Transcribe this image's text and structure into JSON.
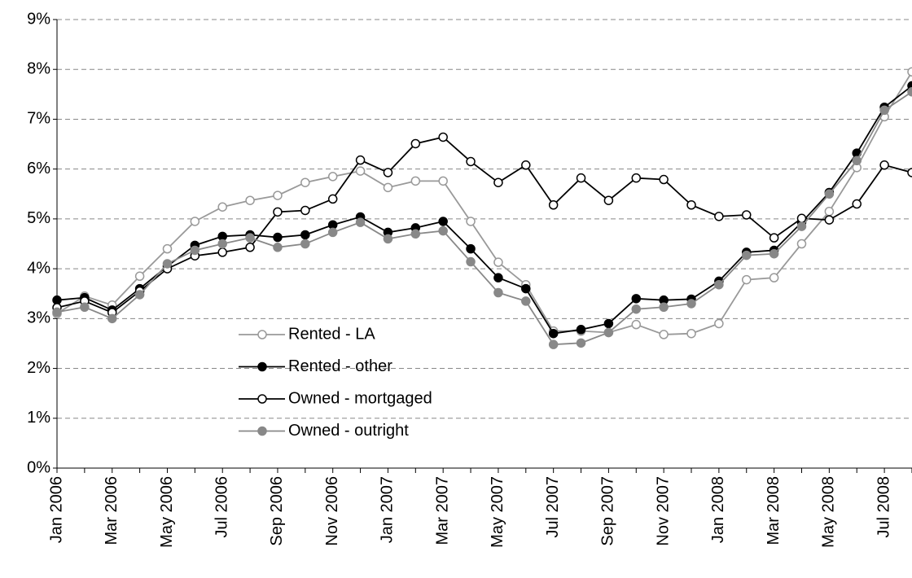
{
  "chart_data": {
    "type": "line",
    "categories": [
      "Jan 2006",
      null,
      "Mar 2006",
      null,
      "May 2006",
      null,
      "Jul 2006",
      null,
      "Sep 2006",
      null,
      "Nov 2006",
      null,
      "Jan 2007",
      null,
      "Mar 2007",
      null,
      "May 2007",
      null,
      "Jul 2007",
      null,
      "Sep 2007",
      null,
      "Nov 2007",
      null,
      "Jan 2008",
      null,
      "Mar 2008",
      null,
      "May 2008",
      null,
      "Jul 2008",
      null
    ],
    "series": [
      {
        "name": "Rented - LA",
        "color": "#999999",
        "marker": "open",
        "values": [
          3.1,
          3.45,
          3.27,
          3.85,
          4.4,
          4.95,
          5.24,
          5.37,
          5.47,
          5.73,
          5.85,
          5.96,
          5.63,
          5.76,
          5.76,
          4.95,
          4.13,
          3.68,
          2.75,
          2.75,
          2.72,
          2.88,
          2.68,
          2.7,
          2.9,
          3.78,
          3.82,
          4.5,
          5.15,
          6.03,
          7.05,
          7.95
        ]
      },
      {
        "name": "Rented - other",
        "color": "#000000",
        "marker": "filled",
        "values": [
          3.37,
          3.42,
          3.17,
          3.6,
          4.05,
          4.47,
          4.65,
          4.68,
          4.63,
          4.68,
          4.88,
          5.04,
          4.73,
          4.82,
          4.95,
          4.4,
          3.82,
          3.6,
          2.7,
          2.78,
          2.9,
          3.4,
          3.37,
          3.39,
          3.75,
          4.33,
          4.37,
          4.93,
          5.53,
          6.32,
          7.24,
          7.67
        ]
      },
      {
        "name": "Owned - mortgaged",
        "color": "#000000",
        "marker": "open",
        "values": [
          3.22,
          3.35,
          3.12,
          3.55,
          4.0,
          4.26,
          4.33,
          4.43,
          5.14,
          5.17,
          5.4,
          6.18,
          5.93,
          6.51,
          6.64,
          6.15,
          5.73,
          6.08,
          5.28,
          5.82,
          5.37,
          5.82,
          5.79,
          5.28,
          5.05,
          5.08,
          4.62,
          5.01,
          4.98,
          5.3,
          6.08,
          5.93
        ]
      },
      {
        "name": "Owned - outright",
        "color": "#888888",
        "marker": "filled",
        "values": [
          3.13,
          3.23,
          3.0,
          3.48,
          4.1,
          4.37,
          4.5,
          4.62,
          4.43,
          4.5,
          4.73,
          4.93,
          4.6,
          4.7,
          4.76,
          4.14,
          3.52,
          3.35,
          2.48,
          2.51,
          2.72,
          3.19,
          3.23,
          3.3,
          3.68,
          4.27,
          4.3,
          4.85,
          5.5,
          6.17,
          7.18,
          7.55
        ]
      }
    ],
    "ylim": [
      0,
      9
    ],
    "yticks": [
      {
        "value": 0,
        "label": "0%"
      },
      {
        "value": 1,
        "label": "1%"
      },
      {
        "value": 2,
        "label": "2%"
      },
      {
        "value": 3,
        "label": "3%"
      },
      {
        "value": 4,
        "label": "4%"
      },
      {
        "value": 5,
        "label": "5%"
      },
      {
        "value": 6,
        "label": "6%"
      },
      {
        "value": 7,
        "label": "7%"
      },
      {
        "value": 8,
        "label": "8%"
      },
      {
        "value": 9,
        "label": "9%"
      }
    ],
    "grid": true,
    "legend": "lower-center"
  }
}
